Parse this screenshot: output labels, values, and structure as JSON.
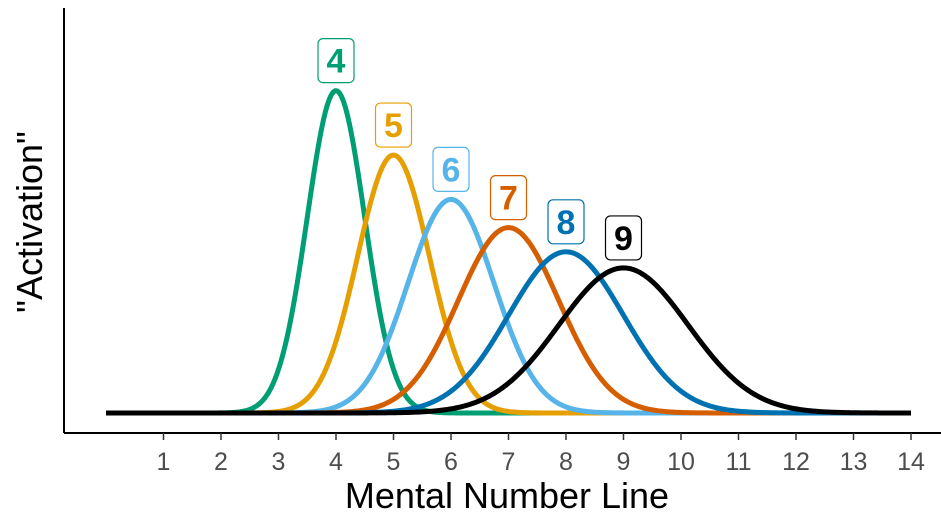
{
  "chart_data": {
    "type": "line",
    "title": "",
    "xlabel": "Mental Number Line",
    "ylabel": "\"Activation\"",
    "xlim": [
      -0.7,
      14.5
    ],
    "ylim": [
      0,
      1.0
    ],
    "x_ticks": [
      "1",
      "2",
      "3",
      "4",
      "5",
      "6",
      "7",
      "8",
      "9",
      "10",
      "11",
      "12",
      "13",
      "14"
    ],
    "grid": false,
    "legend": "none",
    "curve_range": [
      0,
      14
    ],
    "series": [
      {
        "name": "4",
        "peak_x": 4,
        "peak_y": 0.8,
        "sd": 0.5,
        "color": "#009E73"
      },
      {
        "name": "5",
        "peak_x": 5,
        "peak_y": 0.64,
        "sd": 0.625,
        "color": "#E69F00"
      },
      {
        "name": "6",
        "peak_x": 6,
        "peak_y": 0.53,
        "sd": 0.75,
        "color": "#56B4E9"
      },
      {
        "name": "7",
        "peak_x": 7,
        "peak_y": 0.46,
        "sd": 0.875,
        "color": "#D55E00"
      },
      {
        "name": "8",
        "peak_x": 8,
        "peak_y": 0.4,
        "sd": 1.0,
        "color": "#0072B2"
      },
      {
        "name": "9",
        "peak_x": 9,
        "peak_y": 0.36,
        "sd": 1.125,
        "color": "#000000"
      }
    ]
  }
}
